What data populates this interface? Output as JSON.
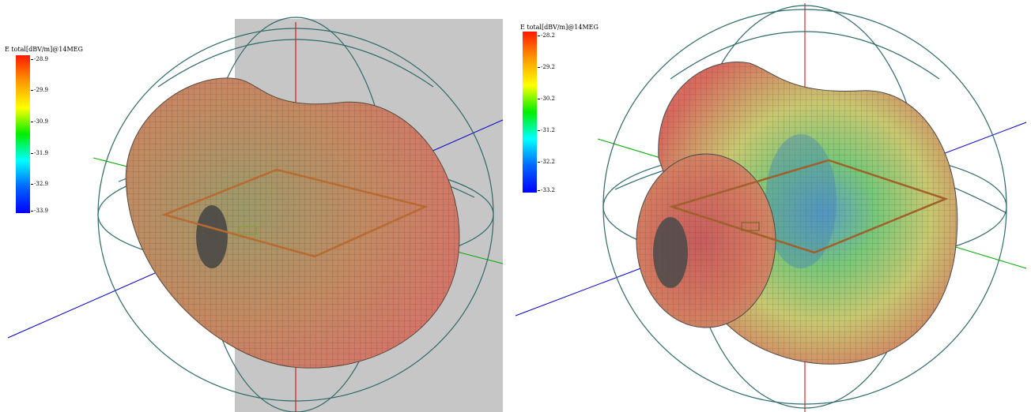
{
  "left": {
    "legend": {
      "title": "E total[dBV/m]@14MEG",
      "ticks": [
        "-28.9",
        "-29.9",
        "-30.9",
        "-31.9",
        "-32.9",
        "-33.9"
      ]
    }
  },
  "right": {
    "legend": {
      "title": "E total[dBV/m]@14MEG",
      "ticks": [
        "-28.2",
        "-29.2",
        "-30.2",
        "-31.2",
        "-32.2",
        "-33.2"
      ]
    }
  },
  "colors": {
    "colorbar": [
      "#ff1a00",
      "#ff9900",
      "#ffff00",
      "#00ee00",
      "#00ffff",
      "#0066ff",
      "#0000ff"
    ],
    "lobe_warm": "#c87f5e",
    "lobe_red": "#d85c5c",
    "lobe_green": "#9ec86a",
    "mesh": "#3a3a3a",
    "great_circle": "#2e6a6a",
    "axis_x": "#cc0000",
    "axis_y": "#00aa00",
    "axis_z": "#0000cc",
    "ground_plane": "#c6c6c6",
    "loop_wire": "#c06030"
  }
}
